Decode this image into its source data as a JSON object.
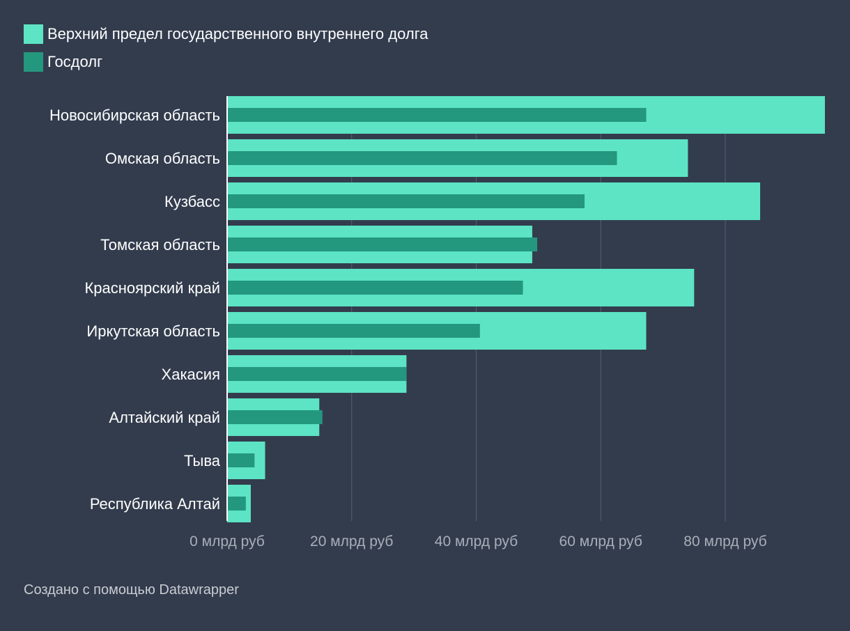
{
  "legend": [
    {
      "name": "Верхний предел государственного внутреннего долга",
      "color": "#5ce4c4"
    },
    {
      "name": "Госдолг",
      "color": "#24977f"
    }
  ],
  "chart_data": {
    "type": "bar",
    "orientation": "horizontal",
    "categories": [
      "Новосибирская область",
      "Омская область",
      "Кузбасс",
      "Томская область",
      "Красноярский край",
      "Иркутская область",
      "Хакасия",
      "Алтайский край",
      "Тыва",
      "Республика Алтай"
    ],
    "series": [
      {
        "name": "Верхний предел государственного внутреннего долга",
        "color": "#5ce4c4",
        "values": [
          96,
          74,
          85.6,
          49,
          75,
          67.3,
          28.8,
          14.8,
          6.1,
          3.8
        ]
      },
      {
        "name": "Госдолг",
        "color": "#24977f",
        "values": [
          67.3,
          62.6,
          57.4,
          49.8,
          47.5,
          40.6,
          28.8,
          15.3,
          4.4,
          3.0
        ]
      }
    ],
    "xlim": [
      0,
      96
    ],
    "xticks": [
      0,
      20,
      40,
      60,
      80
    ],
    "tick_labels": [
      "0 млрд руб",
      "20 млрд руб",
      "40 млрд руб",
      "60 млрд руб",
      "80 млрд руб"
    ],
    "grid": true,
    "legend_position": "top-left"
  },
  "footer": {
    "credit": "Создано с помощью Datawrapper"
  }
}
